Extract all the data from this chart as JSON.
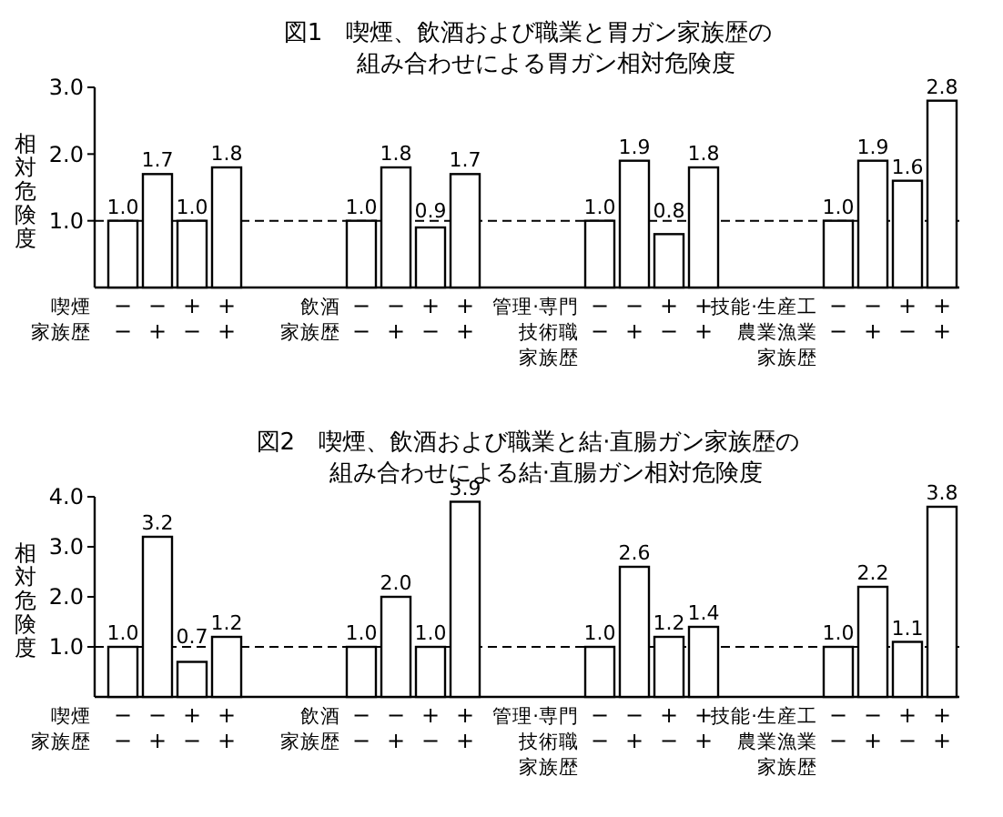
{
  "chart_data": [
    {
      "type": "bar",
      "title": "図1　喫煙、飲酒および職業と胃ガン家族歴の",
      "subtitle": "組み合わせによる胃ガン相対危険度",
      "ylabel": "相対危険度",
      "categories": [
        "−\n−",
        "−\n+",
        "+\n−",
        "+\n+",
        null,
        "−\n−",
        "−\n+",
        "+\n−",
        "+\n+",
        null,
        "−\n−",
        "−\n+",
        "+\n−",
        "+\n+",
        null,
        "−\n−",
        "−\n+",
        "+\n−",
        "+\n+"
      ],
      "values": [
        1.0,
        1.7,
        1.0,
        1.8,
        null,
        1.0,
        1.8,
        0.9,
        1.7,
        null,
        1.0,
        1.9,
        0.8,
        1.8,
        null,
        1.0,
        1.9,
        1.6,
        2.8
      ],
      "value_labels": [
        "1.0",
        "1.7",
        "1.0",
        "1.8",
        null,
        "1.0",
        "1.8",
        "0.9",
        "1.7",
        null,
        "1.0",
        "1.9",
        "0.8",
        "1.8",
        null,
        "1.0",
        "1.9",
        "1.6",
        "2.8"
      ],
      "color": "#ffffff",
      "ylim": [
        0,
        3
      ],
      "yticks": [
        {
          "value": 1,
          "label": "1.0"
        },
        {
          "value": 2,
          "label": "2.0"
        },
        {
          "value": 3,
          "label": "3.0"
        }
      ],
      "ref_lines": [
        {
          "axis": "y",
          "value": 1,
          "line_style": "dashed"
        }
      ],
      "annotations": [
        "喫煙",
        "家族歴",
        "飲酒",
        "家族歴",
        "管理·専門",
        "技術職",
        "家族歴",
        "技能·生産工",
        "農業漁業",
        "家族歴"
      ]
    },
    {
      "type": "bar",
      "title": "図2　喫煙、飲酒および職業と結·直腸ガン家族歴の",
      "subtitle": "組み合わせによる結·直腸ガン相対危険度",
      "ylabel": "相対危険度",
      "categories": [
        "−\n−",
        "−\n+",
        "+\n−",
        "+\n+",
        null,
        "−\n−",
        "−\n+",
        "+\n−",
        "+\n+",
        null,
        "−\n−",
        "−\n+",
        "+\n−",
        "+\n+",
        null,
        "−\n−",
        "−\n+",
        "+\n−",
        "+\n+"
      ],
      "values": [
        1.0,
        3.2,
        0.7,
        1.2,
        null,
        1.0,
        2.0,
        1.0,
        3.9,
        null,
        1.0,
        2.6,
        1.2,
        1.4,
        null,
        1.0,
        2.2,
        1.1,
        3.8
      ],
      "value_labels": [
        "1.0",
        "3.2",
        "0.7",
        "1.2",
        null,
        "1.0",
        "2.0",
        "1.0",
        "3.9",
        null,
        "1.0",
        "2.6",
        "1.2",
        "1.4",
        null,
        "1.0",
        "2.2",
        "1.1",
        "3.8"
      ],
      "color": "#ffffff",
      "ylim": [
        0,
        4
      ],
      "yticks": [
        {
          "value": 1,
          "label": "1.0"
        },
        {
          "value": 2,
          "label": "2.0"
        },
        {
          "value": 3,
          "label": "3.0"
        },
        {
          "value": 4,
          "label": "4.0"
        }
      ],
      "ref_lines": [
        {
          "axis": "y",
          "value": 1,
          "line_style": "dashed"
        }
      ],
      "annotations": [
        "喫煙",
        "家族歴",
        "飲酒",
        "家族歴",
        "管理·専門",
        "技術職",
        "家族歴",
        "技能·生産工",
        "農業漁業",
        "家族歴"
      ]
    }
  ]
}
